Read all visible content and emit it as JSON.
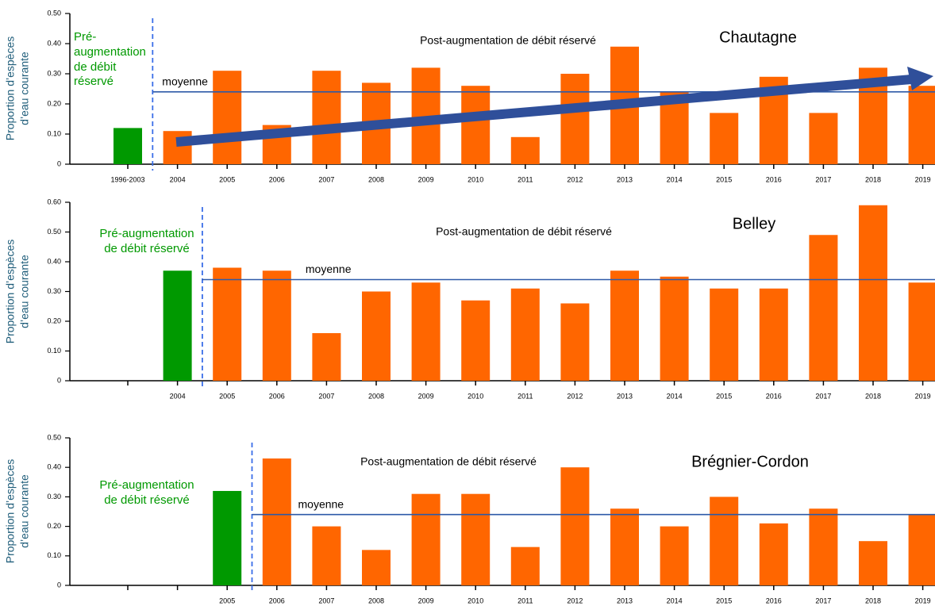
{
  "chart_data": [
    {
      "type": "bar",
      "title": "Chautagne",
      "ylabel": "Proportion d’espèces\nd’eau courante",
      "categories": [
        "1996-2003",
        "2004",
        "2005",
        "2006",
        "2007",
        "2008",
        "2009",
        "2010",
        "2011",
        "2012",
        "2013",
        "2014",
        "2015",
        "2016",
        "2017",
        "2018",
        "2019"
      ],
      "series": [
        {
          "name": "Pré-\naugmentation\nde débit\nréservé",
          "color": "#009900",
          "values": [
            0.12,
            null,
            null,
            null,
            null,
            null,
            null,
            null,
            null,
            null,
            null,
            null,
            null,
            null,
            null,
            null,
            null
          ]
        },
        {
          "name": "Post-augmentation de débit réservé",
          "color": "#ff6600",
          "values": [
            null,
            0.11,
            0.31,
            0.13,
            0.31,
            0.27,
            0.32,
            0.26,
            0.09,
            0.3,
            0.39,
            0.24,
            0.17,
            0.29,
            0.17,
            0.32,
            0.26
          ]
        }
      ],
      "mean": 0.24,
      "mean_label": "moyenne",
      "mean_color": "#2e5aa8",
      "ylim": [
        0,
        0.5
      ],
      "yticks": [
        0,
        {
          "value": 0.1,
          "label": "0.10"
        },
        {
          "value": 0.2,
          "label": "0.20"
        },
        {
          "value": 0.3,
          "label": "0.30"
        },
        {
          "value": 0.4,
          "label": "0.40"
        },
        {
          "value": 0.5,
          "label": "0.50"
        }
      ]
    },
    {
      "type": "bar",
      "title": "Belley",
      "ylabel": "Proportion d’espèces\nd’eau courante",
      "categories": [
        null,
        "2004",
        "2005",
        "2006",
        "2007",
        "2008",
        "2009",
        "2010",
        "2011",
        "2012",
        "2013",
        "2014",
        "2015",
        "2016",
        "2017",
        "2018",
        "2019"
      ],
      "series": [
        {
          "name": "Pré-augmentation\nde débit réservé",
          "color": "#009900",
          "values": [
            null,
            0.37,
            null,
            null,
            null,
            null,
            null,
            null,
            null,
            null,
            null,
            null,
            null,
            null,
            null,
            null,
            null
          ]
        },
        {
          "name": "Post-augmentation de débit réservé",
          "color": "#ff6600",
          "values": [
            null,
            null,
            0.38,
            0.37,
            0.16,
            0.3,
            0.33,
            0.27,
            0.31,
            0.26,
            0.37,
            0.35,
            0.31,
            0.31,
            0.49,
            0.59,
            0.33
          ]
        }
      ],
      "mean": 0.34,
      "mean_label": "moyenne",
      "mean_color": "#2e5aa8",
      "ylim": [
        0,
        0.6
      ],
      "yticks": [
        0,
        {
          "value": 0.1,
          "label": "0.10"
        },
        {
          "value": 0.2,
          "label": "0.20"
        },
        {
          "value": 0.3,
          "label": "0.30"
        },
        {
          "value": 0.4,
          "label": "0.40"
        },
        {
          "value": 0.5,
          "label": "0.50"
        },
        {
          "value": 0.6,
          "label": "0.60"
        }
      ]
    },
    {
      "type": "bar",
      "title": "Brégnier-Cordon",
      "ylabel": "Proportion d’espèces\nd’eau courante",
      "categories": [
        null,
        null,
        "2005",
        "2006",
        "2007",
        "2008",
        "2009",
        "2010",
        "2011",
        "2012",
        "2013",
        "2014",
        "2015",
        "2016",
        "2017",
        "2018",
        "2019"
      ],
      "series": [
        {
          "name": "Pré-augmentation\nde débit réservé",
          "color": "#009900",
          "values": [
            null,
            null,
            0.32,
            null,
            null,
            null,
            null,
            null,
            null,
            null,
            null,
            null,
            null,
            null,
            null,
            null,
            null
          ]
        },
        {
          "name": "Post-augmentation de débit réservé",
          "color": "#ff6600",
          "values": [
            null,
            null,
            null,
            0.43,
            0.2,
            0.12,
            0.31,
            0.31,
            0.13,
            0.4,
            0.26,
            0.2,
            0.3,
            0.21,
            0.26,
            0.15,
            0.24
          ]
        }
      ],
      "mean": 0.24,
      "mean_label": "moyenne",
      "mean_color": "#2e5aa8",
      "ylim": [
        0,
        0.5
      ],
      "yticks": [
        0,
        {
          "value": 0.1,
          "label": "0.10"
        },
        {
          "value": 0.2,
          "label": "0.20"
        },
        {
          "value": 0.3,
          "label": "0.30"
        },
        {
          "value": 0.4,
          "label": "0.40"
        },
        {
          "value": 0.5,
          "label": "0.50"
        }
      ]
    }
  ]
}
